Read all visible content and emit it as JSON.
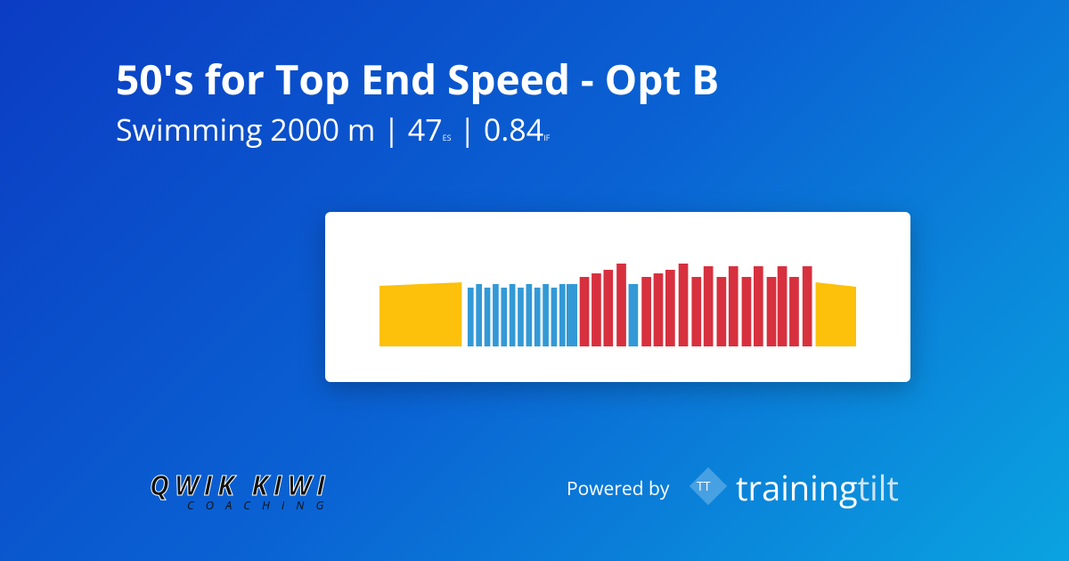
{
  "header": {
    "title": "50's for Top End Speed - Opt B",
    "sport_distance": "Swimming 2000 m",
    "separator": "|",
    "es_value": "47",
    "es_unit": "ES",
    "if_value": "0.84",
    "if_unit": "IF"
  },
  "chart_data": {
    "type": "bar",
    "xlim": [
      0,
      2000
    ],
    "ylim": [
      0,
      1.25
    ],
    "starts": [
      0,
      370,
      405,
      440,
      475,
      510,
      545,
      580,
      615,
      650,
      685,
      720,
      755,
      785,
      840,
      890,
      940,
      995,
      1045,
      1100,
      1150,
      1200,
      1255,
      1310,
      1360,
      1415,
      1465,
      1520,
      1570,
      1625,
      1670,
      1720,
      1775,
      1830
    ],
    "ends": [
      345,
      395,
      430,
      465,
      500,
      535,
      570,
      605,
      640,
      675,
      710,
      745,
      780,
      830,
      880,
      930,
      980,
      1035,
      1085,
      1140,
      1190,
      1240,
      1295,
      1350,
      1400,
      1455,
      1505,
      1560,
      1610,
      1665,
      1710,
      1760,
      1815,
      2000
    ],
    "values": [
      0.68,
      0.66,
      0.7,
      0.66,
      0.7,
      0.66,
      0.7,
      0.66,
      0.7,
      0.66,
      0.7,
      0.66,
      0.7,
      0.7,
      0.78,
      0.82,
      0.86,
      0.93,
      0.7,
      0.78,
      0.82,
      0.86,
      0.93,
      0.78,
      0.9,
      0.78,
      0.9,
      0.78,
      0.9,
      0.78,
      0.9,
      0.78,
      0.9,
      0.72
    ],
    "end_values": [
      0.72,
      0.66,
      0.7,
      0.66,
      0.7,
      0.66,
      0.7,
      0.66,
      0.7,
      0.66,
      0.7,
      0.66,
      0.7,
      0.7,
      0.78,
      0.82,
      0.86,
      0.93,
      0.7,
      0.78,
      0.82,
      0.86,
      0.93,
      0.78,
      0.9,
      0.78,
      0.9,
      0.78,
      0.9,
      0.78,
      0.9,
      0.78,
      0.9,
      0.67
    ],
    "colors": [
      "#fdc00b",
      "#3399d6",
      "#3399d6",
      "#3399d6",
      "#3399d6",
      "#3399d6",
      "#3399d6",
      "#3399d6",
      "#3399d6",
      "#3399d6",
      "#3399d6",
      "#3399d6",
      "#3399d6",
      "#3399d6",
      "#d7303e",
      "#d7303e",
      "#d7303e",
      "#d7303e",
      "#3399d6",
      "#d7303e",
      "#d7303e",
      "#d7303e",
      "#d7303e",
      "#d7303e",
      "#d7303e",
      "#d7303e",
      "#d7303e",
      "#d7303e",
      "#d7303e",
      "#d7303e",
      "#d7303e",
      "#d7303e",
      "#d7303e",
      "#fdc00b"
    ]
  },
  "footer": {
    "logo_name": "QWIK KIWI",
    "logo_sub": "COACHING",
    "powered_by": "Powered by",
    "brand_icon": "TT",
    "brand_a": "training",
    "brand_b": "tilt"
  }
}
